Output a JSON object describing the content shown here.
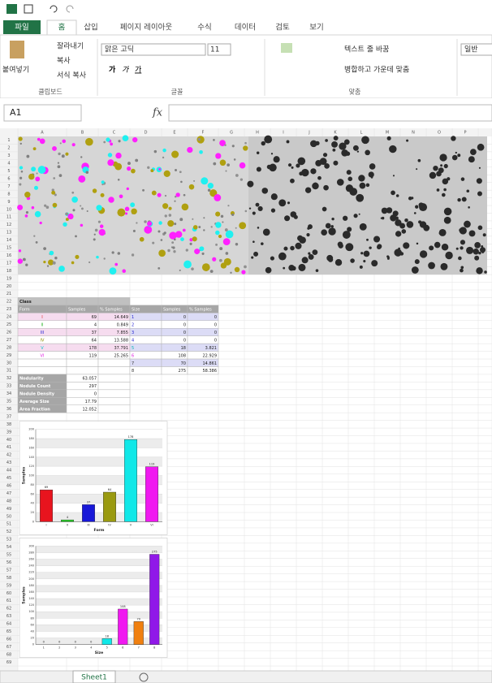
{
  "ribbon": {
    "tabs": [
      "파일",
      "홈",
      "삽입",
      "페이지 레이아웃",
      "수식",
      "데이터",
      "검토",
      "보기"
    ],
    "clipboard": {
      "paste": "붙여넣기",
      "cut": "잘라내기",
      "copy": "복사",
      "format_painter": "서식 복사",
      "label": "클립보드"
    },
    "font": {
      "name": "맑은 고딕",
      "size": "11",
      "label": "글꼴"
    },
    "alignment": {
      "wrap_text": "텍스트 줄 바꿈",
      "merge_center": "병합하고 가운데 맞춤",
      "label": "맞춤"
    },
    "number": {
      "format": "일반"
    }
  },
  "formula_bar": {
    "name_box": "A1",
    "fx": "fx"
  },
  "columns": [
    "A",
    "B",
    "C",
    "D",
    "E",
    "F",
    "G",
    "H",
    "I",
    "J",
    "K",
    "L",
    "M",
    "N",
    "O",
    "P"
  ],
  "row_numbers": [
    1,
    2,
    3,
    4,
    5,
    6,
    7,
    8,
    9,
    10,
    11,
    12,
    13,
    14,
    15,
    16,
    17,
    18,
    19,
    20,
    21,
    22,
    23,
    24,
    25,
    26,
    27,
    28,
    29,
    30,
    31,
    32,
    33,
    34,
    35,
    36,
    37,
    38,
    39,
    40,
    41,
    42,
    43,
    44,
    45,
    46,
    47,
    48,
    49,
    50,
    51,
    52,
    53,
    54,
    55,
    56,
    57,
    58,
    59,
    60,
    61,
    62,
    63,
    64,
    65,
    66,
    67,
    68,
    69
  ],
  "table": {
    "title": "Class",
    "header": [
      "Form",
      "Samples",
      "% Samples",
      "Size",
      "Samples",
      "% Samples"
    ],
    "form_rows": [
      [
        "I",
        69,
        14.649
      ],
      [
        "II",
        4,
        0.849
      ],
      [
        "III",
        37,
        7.855
      ],
      [
        "IV",
        64,
        13.588
      ],
      [
        "V",
        178,
        37.791
      ],
      [
        "VI",
        119,
        25.265
      ]
    ],
    "form_colors": [
      "#e02020",
      "#20b020",
      "#2020d0",
      "#909000",
      "#00c8c8",
      "#e020e0"
    ],
    "size_rows": [
      [
        1,
        0,
        0
      ],
      [
        2,
        0,
        0
      ],
      [
        3,
        0,
        0
      ],
      [
        4,
        0,
        0
      ],
      [
        5,
        18,
        3.821
      ],
      [
        6,
        108,
        22.929
      ],
      [
        7,
        70,
        14.861
      ],
      [
        8,
        275,
        58.386
      ]
    ],
    "stats": [
      [
        "Nodularity",
        63.057
      ],
      [
        "Nodule Count",
        297
      ],
      [
        "Nodule Density",
        0
      ],
      [
        "Average Size",
        17.79
      ],
      [
        "Area Fraction",
        12.052
      ]
    ]
  },
  "chart_data": [
    {
      "type": "bar",
      "categories": [
        "I",
        "II",
        "III",
        "IV",
        "V",
        "VI"
      ],
      "values": [
        69,
        4,
        37,
        64,
        178,
        119
      ],
      "colors": [
        "#e8141e",
        "#22d022",
        "#1818d8",
        "#9a9a10",
        "#10e8e8",
        "#f018f0"
      ],
      "x_label": "Form",
      "y_label": "Samples",
      "ylim": [
        0,
        200
      ],
      "yticks": [
        0,
        20,
        40,
        60,
        80,
        100,
        120,
        140,
        160,
        180,
        200
      ],
      "grid": true
    },
    {
      "type": "bar",
      "categories": [
        "1",
        "2",
        "3",
        "4",
        "5",
        "6",
        "7",
        "8"
      ],
      "values": [
        0,
        0,
        0,
        0,
        18,
        108,
        70,
        275
      ],
      "colors": [
        "#10e8e8",
        "#10e8e8",
        "#10e8e8",
        "#10e8e8",
        "#10e8e8",
        "#f018f0",
        "#f08010",
        "#9018e8"
      ],
      "x_label": "Size",
      "y_label": "Samples",
      "ylim": [
        0,
        300
      ],
      "yticks": [
        0,
        20,
        40,
        60,
        80,
        100,
        120,
        140,
        160,
        180,
        200,
        220,
        240,
        260,
        280,
        300
      ],
      "grid": true
    }
  ],
  "sheet_tabs": [
    "Sheet1"
  ]
}
